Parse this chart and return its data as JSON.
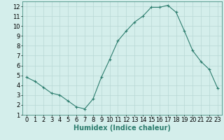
{
  "x": [
    0,
    1,
    2,
    3,
    4,
    5,
    6,
    7,
    8,
    9,
    10,
    11,
    12,
    13,
    14,
    15,
    16,
    17,
    18,
    19,
    20,
    21,
    22,
    23
  ],
  "y": [
    4.8,
    4.4,
    3.8,
    3.2,
    3.0,
    2.4,
    1.8,
    1.6,
    2.6,
    4.8,
    6.6,
    8.5,
    9.5,
    10.4,
    11.0,
    11.9,
    11.9,
    12.1,
    11.4,
    9.5,
    7.5,
    6.4,
    5.6,
    3.7
  ],
  "xlabel": "Humidex (Indice chaleur)",
  "line_color": "#2d7d6e",
  "bg_color": "#d4eeeb",
  "grid_color": "#b8d8d5",
  "xlim": [
    -0.5,
    23.5
  ],
  "ylim": [
    1,
    12.5
  ],
  "yticks": [
    1,
    2,
    3,
    4,
    5,
    6,
    7,
    8,
    9,
    10,
    11,
    12
  ],
  "xticks": [
    0,
    1,
    2,
    3,
    4,
    5,
    6,
    7,
    8,
    9,
    10,
    11,
    12,
    13,
    14,
    15,
    16,
    17,
    18,
    19,
    20,
    21,
    22,
    23
  ],
  "xlabel_fontsize": 7,
  "tick_fontsize": 6,
  "marker": "+",
  "markersize": 3,
  "linewidth": 0.8
}
